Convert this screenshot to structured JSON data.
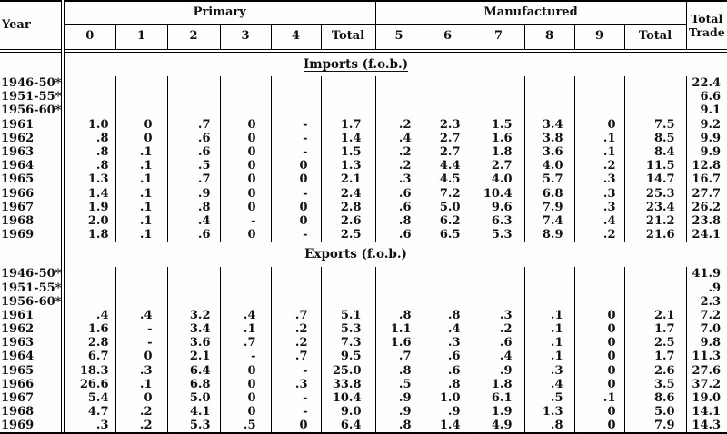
{
  "table": {
    "year_header": "Year",
    "groups": {
      "primary": "Primary",
      "manufactured": "Manufactured"
    },
    "subcols": [
      "0",
      "1",
      "2",
      "3",
      "4",
      "Total",
      "5",
      "6",
      "7",
      "8",
      "9",
      "Total"
    ],
    "total_trade": {
      "line1": "Total",
      "line2": "Trade"
    },
    "sections": [
      {
        "title": "Imports (f.o.b.)",
        "rows": [
          {
            "year": "1946-50*",
            "cells": [
              "",
              "",
              "",
              "",
              "",
              "",
              "",
              "",
              "",
              "",
              "",
              "",
              "22.4"
            ]
          },
          {
            "year": "1951-55*",
            "cells": [
              "",
              "",
              "",
              "",
              "",
              "",
              "",
              "",
              "",
              "",
              "",
              "",
              "6.6"
            ]
          },
          {
            "year": "1956-60*",
            "cells": [
              "",
              "",
              "",
              "",
              "",
              "",
              "",
              "",
              "",
              "",
              "",
              "",
              "9.1"
            ]
          },
          {
            "year": "1961",
            "cells": [
              "1.0",
              "0",
              ".7",
              "0",
              "-",
              "1.7",
              ".2",
              "2.3",
              "1.5",
              "3.4",
              "0",
              "7.5",
              "9.2"
            ]
          },
          {
            "year": "1962",
            "cells": [
              ".8",
              "0",
              ".6",
              "0",
              "-",
              "1.4",
              ".4",
              "2.7",
              "1.6",
              "3.8",
              ".1",
              "8.5",
              "9.9"
            ]
          },
          {
            "year": "1963",
            "cells": [
              ".8",
              ".1",
              ".6",
              "0",
              "-",
              "1.5",
              ".2",
              "2.7",
              "1.8",
              "3.6",
              ".1",
              "8.4",
              "9.9"
            ]
          },
          {
            "year": "1964",
            "cells": [
              ".8",
              ".1",
              ".5",
              "0",
              "0",
              "1.3",
              ".2",
              "4.4",
              "2.7",
              "4.0",
              ".2",
              "11.5",
              "12.8"
            ]
          },
          {
            "year": "1965",
            "cells": [
              "1.3",
              ".1",
              ".7",
              "0",
              "0",
              "2.1",
              ".3",
              "4.5",
              "4.0",
              "5.7",
              ".3",
              "14.7",
              "16.7"
            ]
          },
          {
            "year": "1966",
            "cells": [
              "1.4",
              ".1",
              ".9",
              "0",
              "-",
              "2.4",
              ".6",
              "7.2",
              "10.4",
              "6.8",
              ".3",
              "25.3",
              "27.7"
            ]
          },
          {
            "year": "1967",
            "cells": [
              "1.9",
              ".1",
              ".8",
              "0",
              "0",
              "2.8",
              ".6",
              "5.0",
              "9.6",
              "7.9",
              ".3",
              "23.4",
              "26.2"
            ]
          },
          {
            "year": "1968",
            "cells": [
              "2.0",
              ".1",
              ".4",
              "-",
              "0",
              "2.6",
              ".8",
              "6.2",
              "6.3",
              "7.4",
              ".4",
              "21.2",
              "23.8"
            ]
          },
          {
            "year": "1969",
            "cells": [
              "1.8",
              ".1",
              ".6",
              "0",
              "-",
              "2.5",
              ".6",
              "6.5",
              "5.3",
              "8.9",
              ".2",
              "21.6",
              "24.1"
            ]
          }
        ]
      },
      {
        "title": "Exports (f.o.b.)",
        "rows": [
          {
            "year": "1946-50*",
            "cells": [
              "",
              "",
              "",
              "",
              "",
              "",
              "",
              "",
              "",
              "",
              "",
              "",
              "41.9"
            ]
          },
          {
            "year": "1951-55*",
            "cells": [
              "",
              "",
              "",
              "",
              "",
              "",
              "",
              "",
              "",
              "",
              "",
              "",
              ".9"
            ]
          },
          {
            "year": "1956-60*",
            "cells": [
              "",
              "",
              "",
              "",
              "",
              "",
              "",
              "",
              "",
              "",
              "",
              "",
              "2.3"
            ]
          },
          {
            "year": "1961",
            "cells": [
              ".4",
              ".4",
              "3.2",
              ".4",
              ".7",
              "5.1",
              ".8",
              ".8",
              ".3",
              ".1",
              "0",
              "2.1",
              "7.2"
            ]
          },
          {
            "year": "1962",
            "cells": [
              "1.6",
              "-",
              "3.4",
              ".1",
              ".2",
              "5.3",
              "1.1",
              ".4",
              ".2",
              ".1",
              "0",
              "1.7",
              "7.0"
            ]
          },
          {
            "year": "1963",
            "cells": [
              "2.8",
              "-",
              "3.6",
              ".7",
              ".2",
              "7.3",
              "1.6",
              ".3",
              ".6",
              ".1",
              "0",
              "2.5",
              "9.8"
            ]
          },
          {
            "year": "1964",
            "cells": [
              "6.7",
              "0",
              "2.1",
              "-",
              ".7",
              "9.5",
              ".7",
              ".6",
              ".4",
              ".1",
              "0",
              "1.7",
              "11.3"
            ]
          },
          {
            "year": "1965",
            "cells": [
              "18.3",
              ".3",
              "6.4",
              "0",
              "-",
              "25.0",
              ".8",
              ".6",
              ".9",
              ".3",
              "0",
              "2.6",
              "27.6"
            ]
          },
          {
            "year": "1966",
            "cells": [
              "26.6",
              ".1",
              "6.8",
              "0",
              ".3",
              "33.8",
              ".5",
              ".8",
              "1.8",
              ".4",
              "0",
              "3.5",
              "37.2"
            ]
          },
          {
            "year": "1967",
            "cells": [
              "5.4",
              "0",
              "5.0",
              "0",
              "-",
              "10.4",
              ".9",
              "1.0",
              "6.1",
              ".5",
              ".1",
              "8.6",
              "19.0"
            ]
          },
          {
            "year": "1968",
            "cells": [
              "4.7",
              ".2",
              "4.1",
              "0",
              "-",
              "9.0",
              ".9",
              ".9",
              "1.9",
              "1.3",
              "0",
              "5.0",
              "14.1"
            ]
          },
          {
            "year": "1969",
            "cells": [
              ".3",
              ".2",
              "5.3",
              ".5",
              "0",
              "6.4",
              ".8",
              "1.4",
              "4.9",
              ".8",
              "0",
              "7.9",
              "14.3"
            ]
          }
        ]
      }
    ]
  }
}
